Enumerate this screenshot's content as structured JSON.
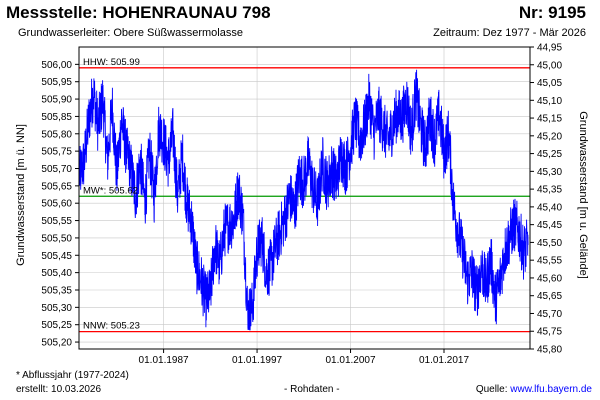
{
  "header": {
    "title": "Messstelle: HOHENRAUNAU 798",
    "number": "Nr: 9195",
    "aquifer": "Grundwasserleiter:   Obere Süßwassermolasse",
    "period": "Zeitraum: Dez 1977 - Mär 2026"
  },
  "footer": {
    "note": "* Abflussjahr (1977-2024)",
    "created": "erstellt:  10.03.2026",
    "raw": "- Rohdaten -",
    "source_label": "Quelle: ",
    "source_url": "www.lfu.bayern.de"
  },
  "chart_data": {
    "type": "line",
    "ylabel": "Grundwasserstand [m ü. NN]",
    "ylabel_right": "Grundwasserstand [m u. Gelände]",
    "ylim": [
      505.18,
      506.05
    ],
    "y2lim": [
      45.8,
      44.95
    ],
    "yticks": [
      "505,20",
      "505,25",
      "505,30",
      "505,35",
      "505,40",
      "505,45",
      "505,50",
      "505,55",
      "505,60",
      "505,65",
      "505,70",
      "505,75",
      "505,80",
      "505,85",
      "505,90",
      "505,95",
      "506,00"
    ],
    "y2ticks": [
      "44,95",
      "45,00",
      "45,05",
      "45,10",
      "45,15",
      "45,20",
      "45,25",
      "45,30",
      "45,35",
      "45,40",
      "45,45",
      "45,50",
      "45,55",
      "45,60",
      "45,65",
      "45,70",
      "45,75",
      "45,80"
    ],
    "xlim": [
      1977.95,
      2026.2
    ],
    "xticks": [
      "01.01.1987",
      "01.01.1997",
      "01.01.2007",
      "01.01.2017"
    ],
    "grid": true,
    "colors": {
      "series": "#0000ff",
      "hhw": "#ff0000",
      "mw": "#009900",
      "nnw": "#ff0000",
      "grid": "#c8c8c8"
    },
    "reference_lines": [
      {
        "label": "HHW: 505.99",
        "value": 505.99,
        "color": "#ff0000"
      },
      {
        "label": "MW*: 505.62",
        "value": 505.62,
        "color": "#009900"
      },
      {
        "label": "NNW: 505.23",
        "value": 505.23,
        "color": "#ff0000"
      }
    ],
    "series": [
      {
        "x": [
          1978.0,
          1978.5,
          1979.0,
          1979.5,
          1980.0,
          1980.5,
          1981.0,
          1981.5,
          1982.0,
          1982.5,
          1983.0,
          1983.5,
          1984.0,
          1984.5,
          1985.0,
          1985.5,
          1986.0,
          1986.5,
          1987.0,
          1987.5,
          1988.0,
          1988.5,
          1989.0,
          1989.5,
          1990.0,
          1990.5,
          1991.0,
          1991.5,
          1992.0,
          1992.5,
          1993.0,
          1993.5,
          1994.0,
          1994.5,
          1995.0,
          1995.5,
          1996.0,
          1996.5,
          1997.0,
          1997.5,
          1998.0,
          1998.5,
          1999.0,
          1999.5,
          2000.0,
          2000.5,
          2001.0,
          2001.5,
          2002.0,
          2002.5,
          2003.0,
          2003.5,
          2004.0,
          2004.5,
          2005.0,
          2005.5,
          2006.0,
          2006.5,
          2007.0,
          2007.5,
          2008.0,
          2008.5,
          2009.0,
          2009.5,
          2010.0,
          2010.5,
          2011.0,
          2011.5,
          2012.0,
          2012.5,
          2013.0,
          2013.5,
          2014.0,
          2014.5,
          2015.0,
          2015.5,
          2016.0,
          2016.5,
          2017.0,
          2017.5,
          2018.0,
          2018.5,
          2019.0,
          2019.5,
          2020.0,
          2020.5,
          2021.0,
          2021.5,
          2022.0,
          2022.5,
          2023.0,
          2023.5,
          2024.0,
          2024.5,
          2025.0,
          2025.5,
          2026.0
        ],
        "values": [
          505.68,
          505.72,
          505.84,
          505.92,
          505.82,
          505.9,
          505.72,
          505.88,
          505.68,
          505.84,
          505.75,
          505.7,
          505.62,
          505.72,
          505.6,
          505.75,
          505.62,
          505.82,
          505.78,
          505.72,
          505.8,
          505.62,
          505.74,
          505.6,
          505.55,
          505.42,
          505.38,
          505.32,
          505.34,
          505.48,
          505.42,
          505.52,
          505.54,
          505.55,
          505.64,
          505.56,
          505.28,
          505.3,
          505.46,
          505.5,
          505.4,
          505.42,
          505.48,
          505.52,
          505.56,
          505.62,
          505.58,
          505.68,
          505.66,
          505.72,
          505.64,
          505.6,
          505.72,
          505.65,
          505.7,
          505.66,
          505.74,
          505.7,
          505.76,
          505.84,
          505.78,
          505.82,
          505.9,
          505.8,
          505.86,
          505.82,
          505.78,
          505.82,
          505.86,
          505.84,
          505.9,
          505.8,
          505.92,
          505.82,
          505.76,
          505.85,
          505.78,
          505.86,
          505.74,
          505.8,
          505.6,
          505.52,
          505.46,
          505.38,
          505.4,
          505.34,
          505.42,
          505.36,
          505.44,
          505.32,
          505.38,
          505.46,
          505.5,
          505.54,
          505.52,
          505.46,
          505.48
        ]
      }
    ]
  }
}
